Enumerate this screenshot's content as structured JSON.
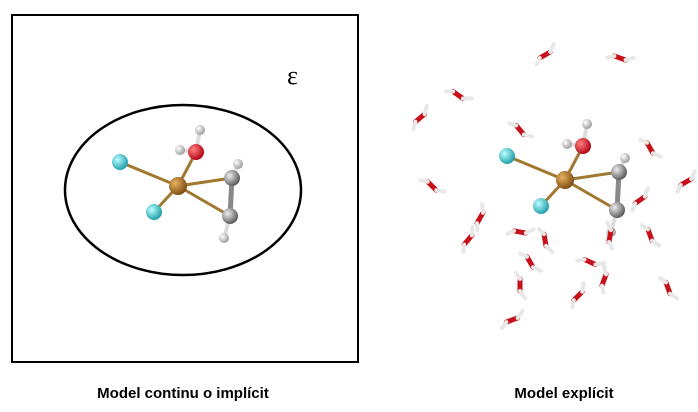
{
  "panels": [
    {
      "symbol": "ε",
      "caption": "Model continu o implícit"
    },
    {
      "caption": "Model explícit"
    }
  ]
}
